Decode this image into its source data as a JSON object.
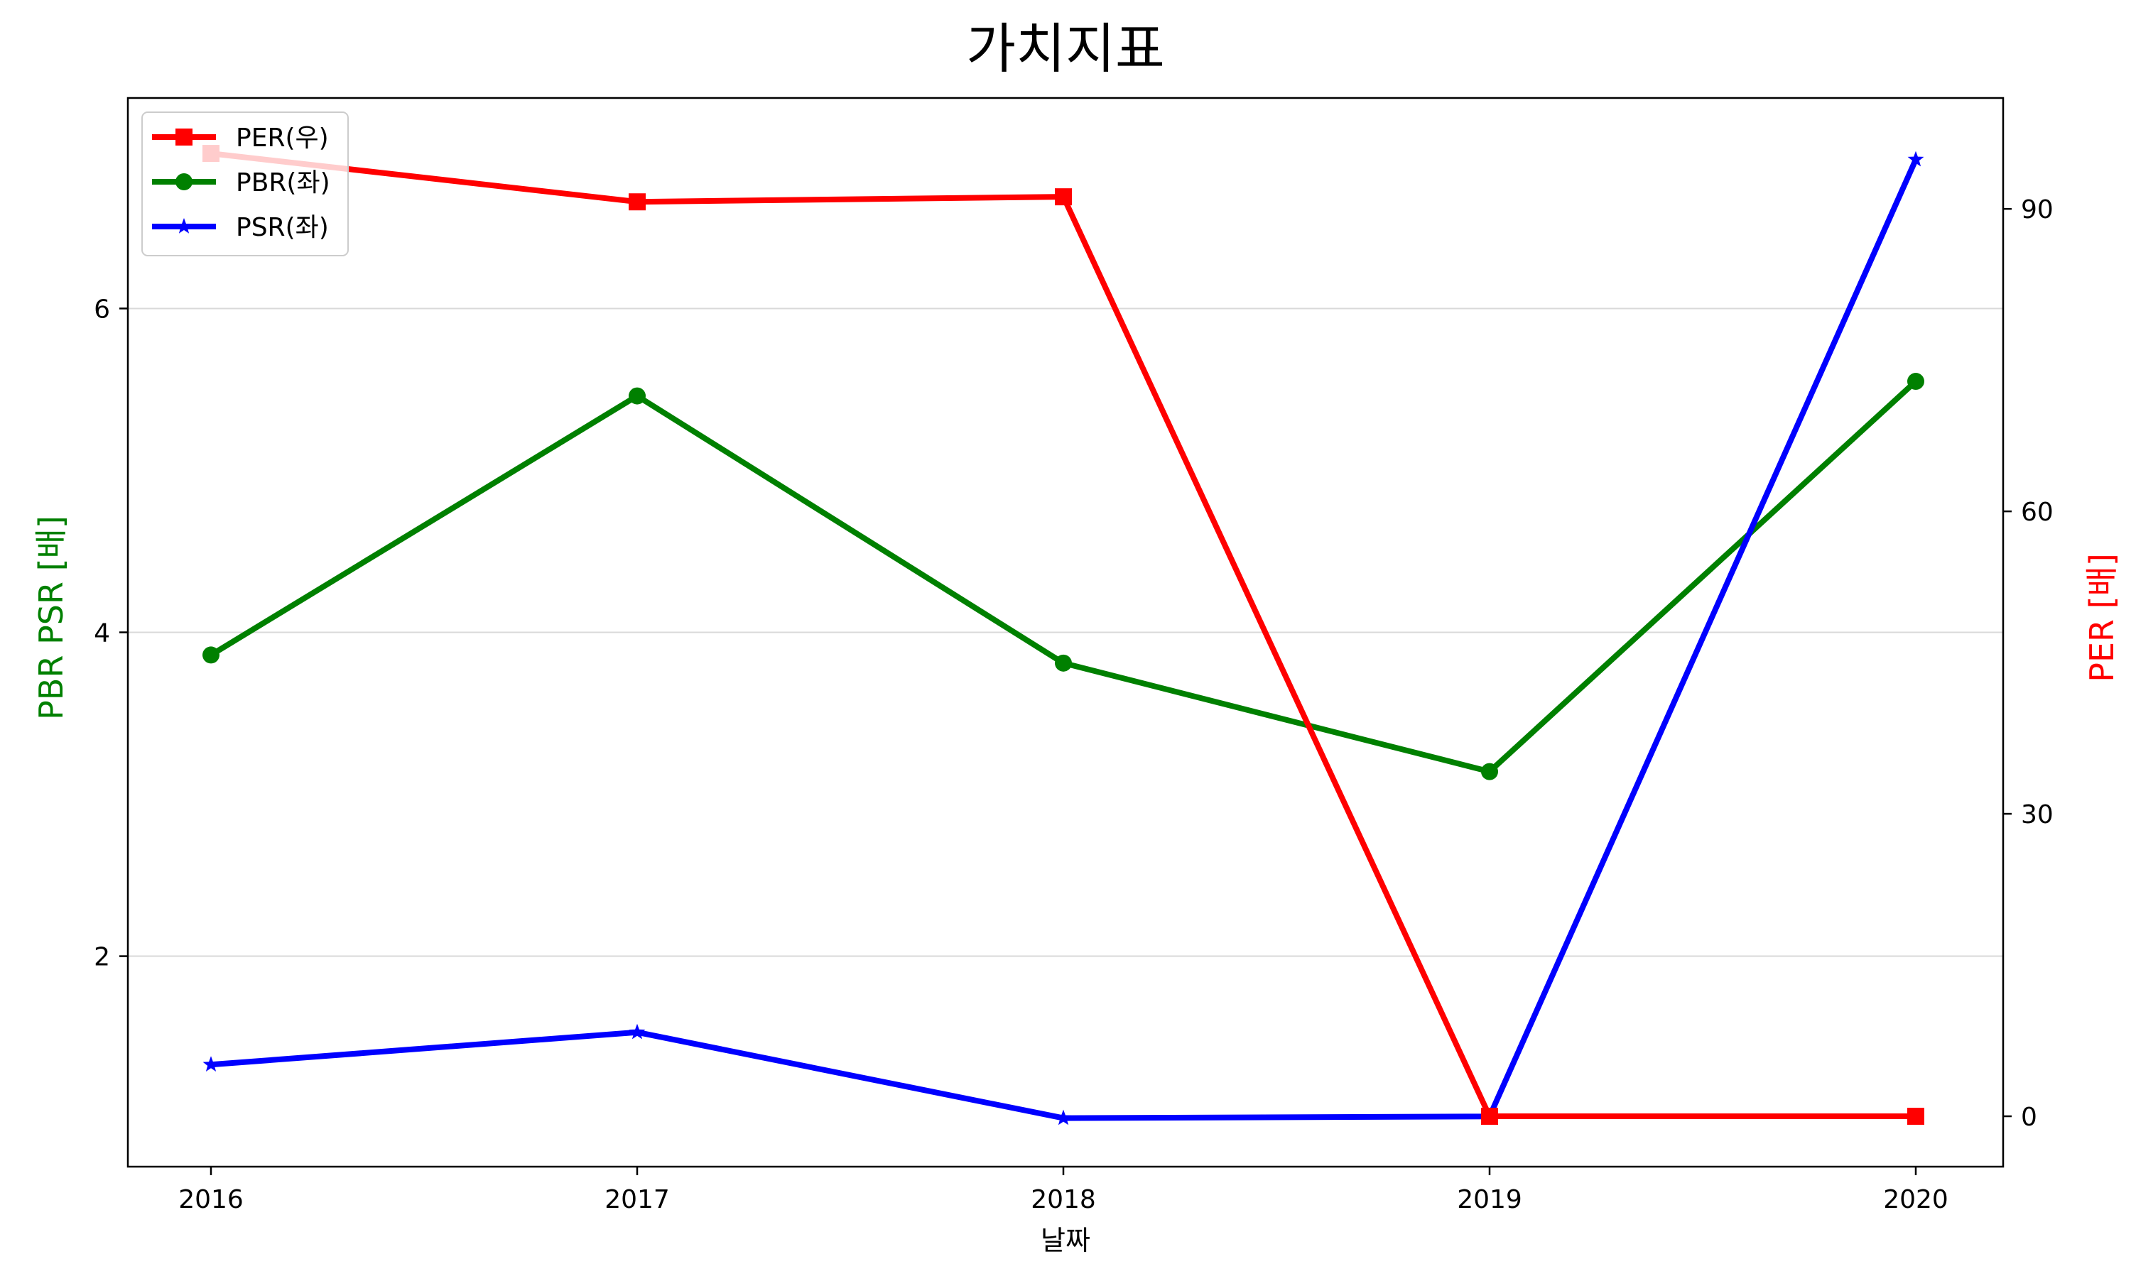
{
  "chart_data": {
    "type": "line",
    "title": "가치지표",
    "xlabel": "날짜",
    "ylabel_left": "PBR PSR [배]",
    "ylabel_right": "PER [배]",
    "categories": [
      "2016",
      "2017",
      "2018",
      "2019",
      "2020"
    ],
    "ylim_left": [
      0.7,
      7.3
    ],
    "ylim_right": [
      -5,
      101
    ],
    "yticks_left": [
      2,
      4,
      6
    ],
    "yticks_right": [
      0,
      30,
      60,
      90
    ],
    "grid": "horizontal",
    "legend_position": "top-left",
    "series": [
      {
        "name": "PER(우)",
        "axis": "right",
        "marker": "square",
        "color": "#ff0000",
        "values": [
          95.5,
          90.7,
          91.2,
          0.0,
          0.0
        ]
      },
      {
        "name": "PBR(좌)",
        "axis": "left",
        "marker": "circle",
        "color": "#008000",
        "values": [
          3.86,
          5.46,
          3.81,
          3.14,
          5.55
        ]
      },
      {
        "name": "PSR(좌)",
        "axis": "left",
        "marker": "star",
        "color": "#0000ff",
        "values": [
          1.33,
          1.53,
          1.0,
          1.01,
          6.92
        ]
      }
    ]
  },
  "colors": {
    "ylabel_left": "#008000",
    "ylabel_right": "#ff0000",
    "grid": "#d9d9d9",
    "axes": "#000000"
  }
}
